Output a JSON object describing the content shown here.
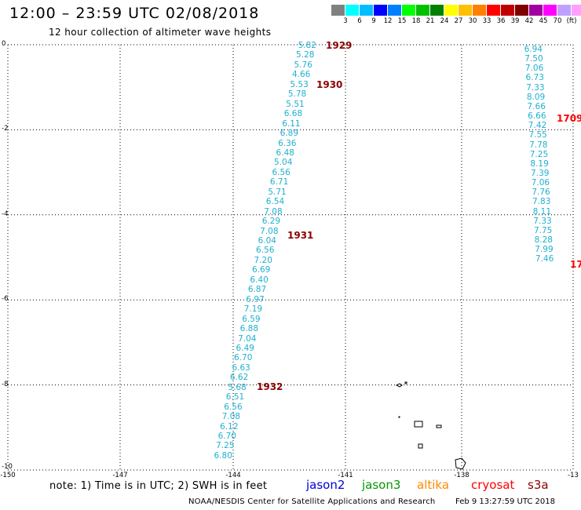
{
  "header": {
    "title": "12:00 – 23:59 UTC 02/08/2018",
    "subtitle": "12 hour collection of altimeter wave heights"
  },
  "colorbar": {
    "colors": [
      "#808080",
      "#00ffff",
      "#00bfff",
      "#0000ff",
      "#0080ff",
      "#00ff00",
      "#00c000",
      "#008000",
      "#ffff00",
      "#ffc000",
      "#ff8000",
      "#ff0000",
      "#c00000",
      "#800000",
      "#a000a0",
      "#ff00ff",
      "#c0a0ff",
      "#ffa0ff",
      "#000000"
    ],
    "labels": [
      "3",
      "6",
      "9",
      "12",
      "15",
      "18",
      "21",
      "24",
      "27",
      "30",
      "33",
      "36",
      "39",
      "42",
      "45",
      "70",
      "(ft)"
    ]
  },
  "axes": {
    "y_ticks": [
      "0",
      "-2",
      "-4",
      "-6",
      "-8",
      "-10"
    ],
    "x_ticks": [
      "-150",
      "-147",
      "-144",
      "-141",
      "-138",
      "-13"
    ]
  },
  "track_left": {
    "values": [
      "5.82",
      "5.28",
      "5.76",
      "4.66",
      "5.53",
      "5.78",
      "5.51",
      "6.68",
      "6.11",
      "6.89",
      "6.36",
      "6.48",
      "5.04",
      "6.56",
      "6.71",
      "5.71",
      "6.54",
      "7.08",
      "6.29",
      "7.08",
      "6.04",
      "6.56",
      "7.20",
      "6.69",
      "6.40",
      "6.87",
      "6.97",
      "7.19",
      "6.59",
      "6.88",
      "7.04",
      "6.49",
      "6.70",
      "6.63",
      "6.62",
      "5.68",
      "6.51",
      "6.56",
      "7.08",
      "6.12",
      "6.70",
      "7.25",
      "6.80"
    ],
    "times": [
      "1929",
      "1930",
      "1931",
      "1932"
    ]
  },
  "track_right": {
    "values": [
      "6.94",
      "7.50",
      "7.06",
      "6.73",
      "7.33",
      "8.09",
      "7.66",
      "6.66",
      "7.42",
      "7.55",
      "7.78",
      "7.25",
      "8.19",
      "7.39",
      "7.06",
      "7.76",
      "7.83",
      "8.11",
      "7.33",
      "7.75",
      "8.28",
      "7.99",
      "7.46"
    ],
    "times": [
      "1709",
      "17"
    ]
  },
  "footer": {
    "note": "note: 1) Time is in UTC; 2) SWH is in feet",
    "satellites": [
      {
        "name": "jason2",
        "color": "#0000dd"
      },
      {
        "name": "jason3",
        "color": "#009900"
      },
      {
        "name": "altika",
        "color": "#ff8800"
      },
      {
        "name": "cryosat",
        "color": "#ff0000"
      },
      {
        "name": "s3a",
        "color": "#8b0000"
      }
    ],
    "credit": "NOAA/NESDIS Center for Satellite Applications and Research",
    "timestamp": "Feb  9 13:27:59 UTC 2018"
  }
}
